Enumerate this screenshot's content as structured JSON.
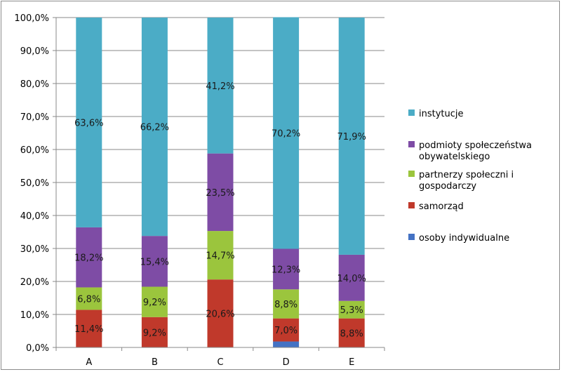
{
  "chart_data": {
    "type": "bar",
    "stacked": true,
    "percent_stacked": true,
    "categories": [
      "A",
      "B",
      "C",
      "D",
      "E"
    ],
    "ylim": [
      0,
      100
    ],
    "yticks": [
      "0,0%",
      "10,0%",
      "20,0%",
      "30,0%",
      "40,0%",
      "50,0%",
      "60,0%",
      "70,0%",
      "80,0%",
      "90,0%",
      "100,0%"
    ],
    "grid": true,
    "legend_position": "right",
    "series": [
      {
        "name": "osoby indywidualne",
        "color": "#4472c4",
        "values": [
          0,
          0,
          0,
          1.8,
          0
        ],
        "labels": [
          "",
          "",
          "",
          "",
          ""
        ]
      },
      {
        "name": "samorząd",
        "color": "#c0392b",
        "values": [
          11.4,
          9.2,
          20.6,
          7.0,
          8.8
        ],
        "labels": [
          "11,4%",
          "9,2%",
          "20,6%",
          "7,0%",
          "8,8%"
        ]
      },
      {
        "name": "partnerzy społeczni i gospodarczy",
        "color": "#9bc53d",
        "values": [
          6.8,
          9.2,
          14.7,
          8.8,
          5.3
        ],
        "labels": [
          "6,8%",
          "9,2%",
          "14,7%",
          "8,8%",
          "5,3%"
        ]
      },
      {
        "name": "podmioty społeczeństwa obywatelskiego",
        "color": "#7e4ca5",
        "values": [
          18.2,
          15.4,
          23.5,
          12.3,
          14.0
        ],
        "labels": [
          "18,2%",
          "15,4%",
          "23,5%",
          "12,3%",
          "14,0%"
        ]
      },
      {
        "name": "instytucje",
        "color": "#4bacc6",
        "values": [
          63.6,
          66.2,
          41.2,
          70.2,
          71.9
        ],
        "labels": [
          "63,6%",
          "66,2%",
          "41,2%",
          "70,2%",
          "71,9%"
        ]
      }
    ],
    "legend": [
      {
        "lines": [
          "instytucje"
        ],
        "color": "#4bacc6"
      },
      {
        "lines": [
          "podmioty społeczeństwa",
          "obywatelskiego"
        ],
        "color": "#7e4ca5"
      },
      {
        "lines": [
          "partnerzy społeczni i",
          "gospodarczy"
        ],
        "color": "#9bc53d"
      },
      {
        "lines": [
          "samorząd"
        ],
        "color": "#c0392b"
      },
      {
        "lines": [
          "osoby indywidualne"
        ],
        "color": "#4472c4"
      }
    ]
  }
}
